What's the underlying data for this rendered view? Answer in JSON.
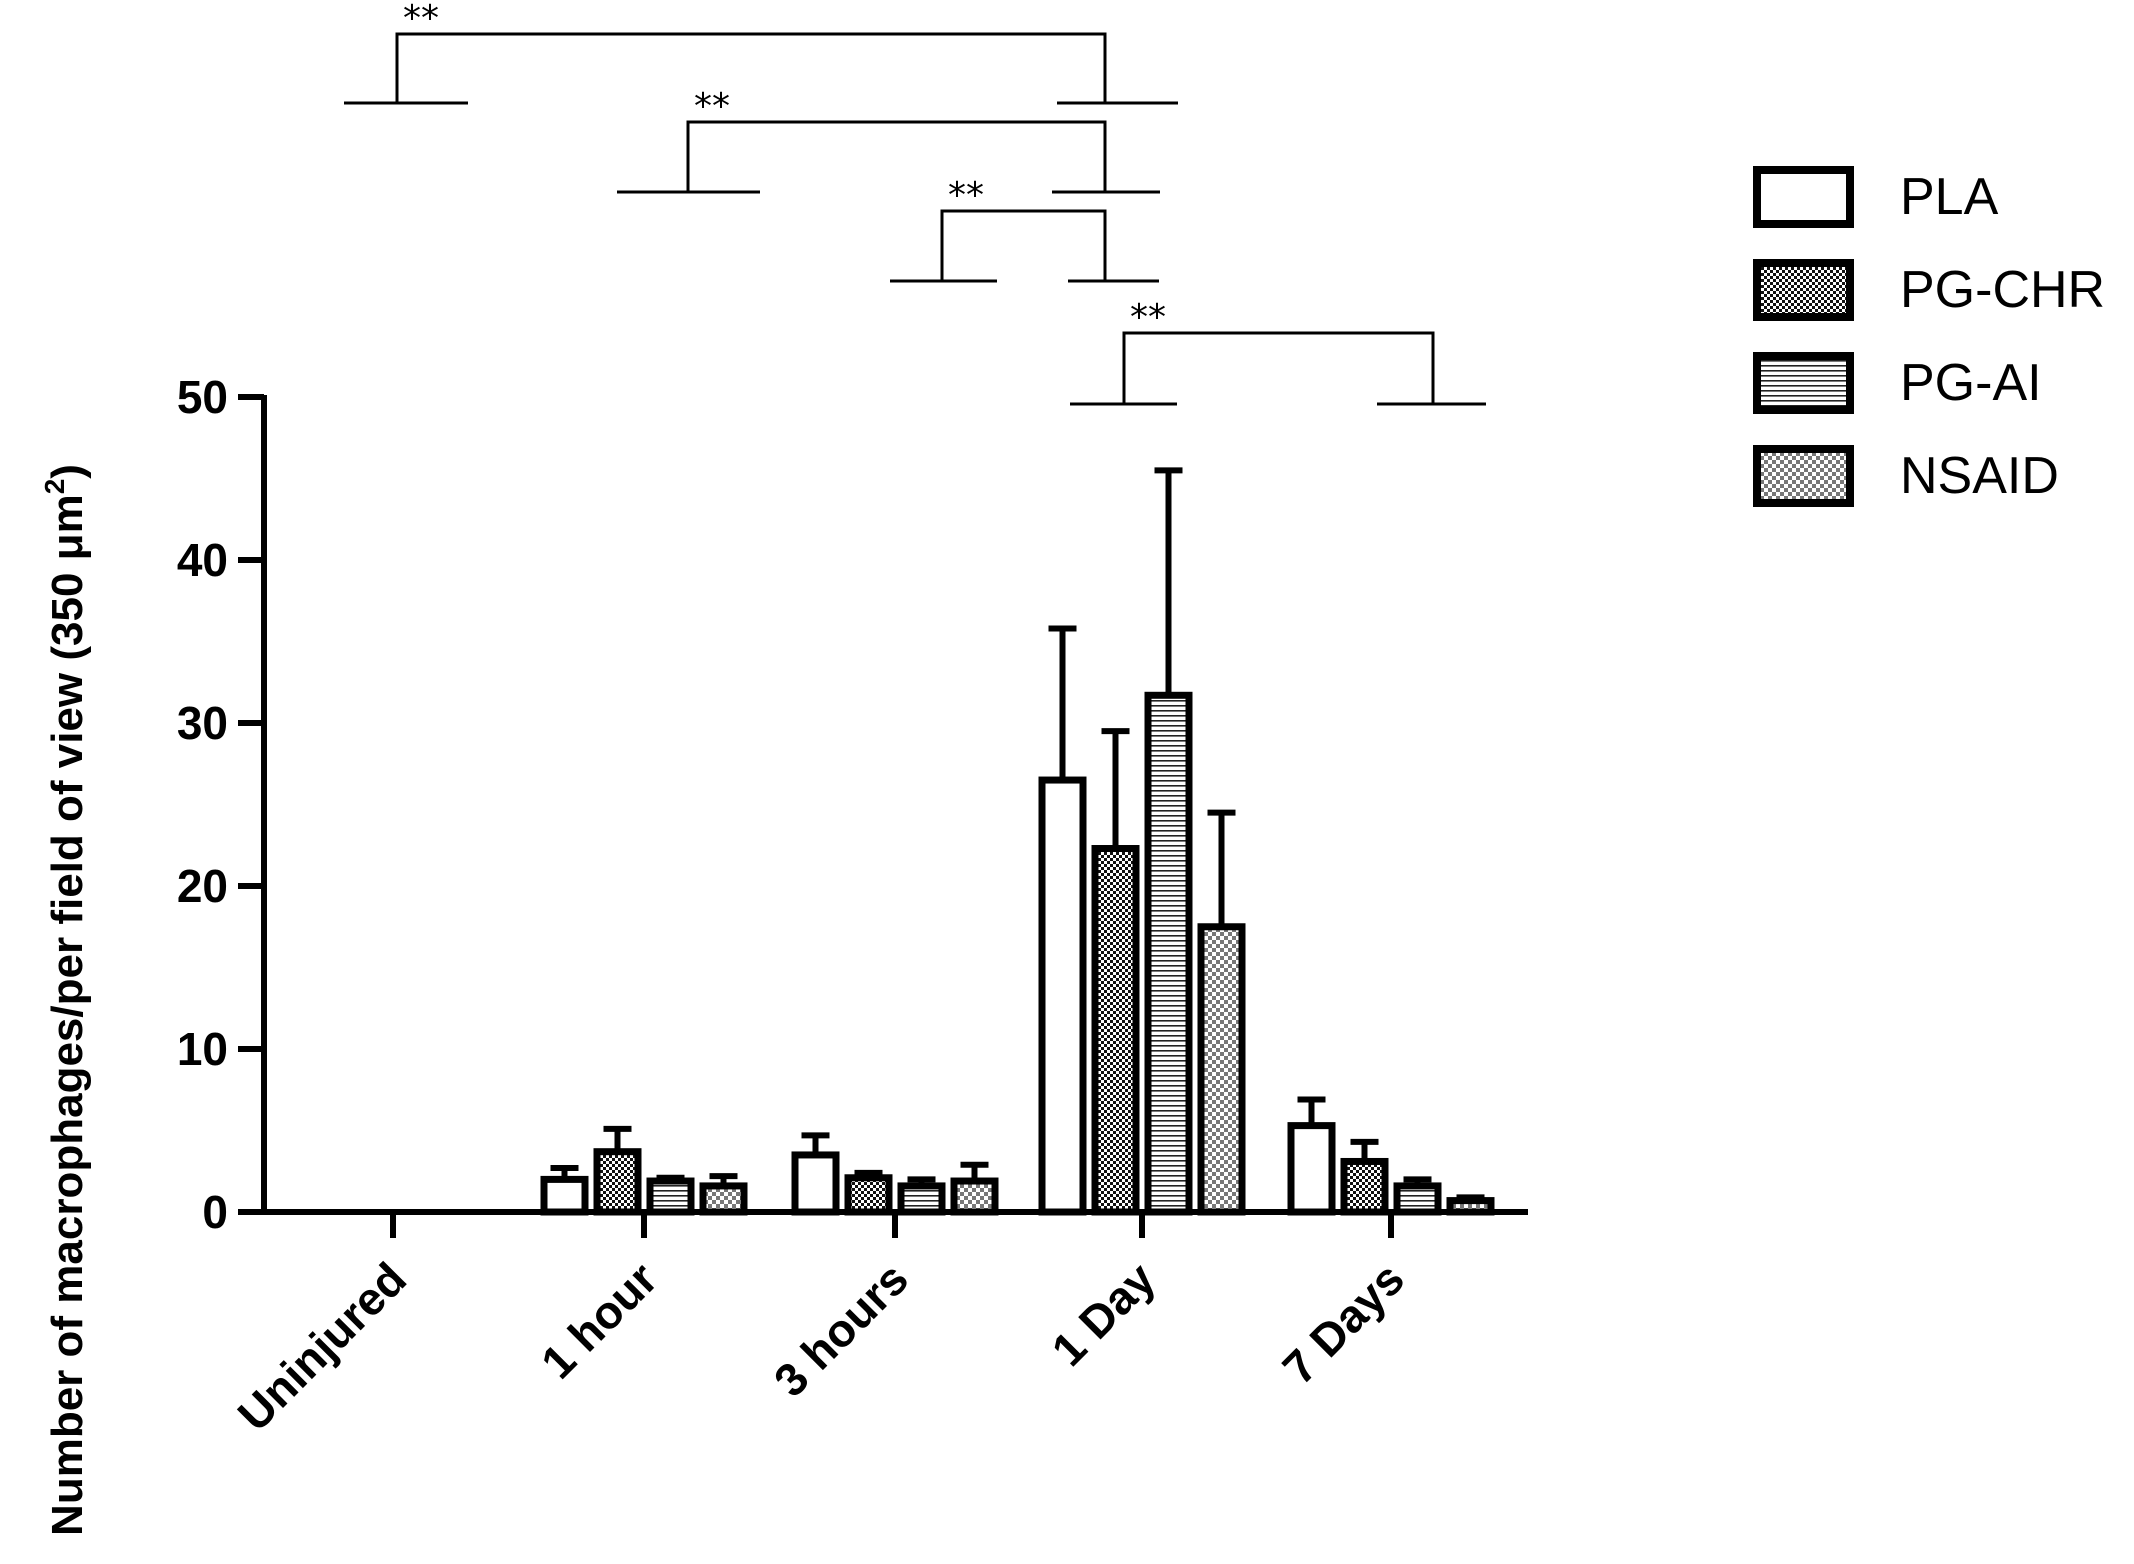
{
  "chart_data": {
    "type": "bar",
    "categories": [
      "Uninjured",
      "1 hour",
      "3 hours",
      "1 Day",
      "7 Days"
    ],
    "series": [
      {
        "name": "PLA",
        "pattern": "open",
        "values": [
          0,
          2.0,
          3.5,
          26.5,
          5.3
        ],
        "errors": [
          0,
          0.7,
          1.2,
          9.3,
          1.6
        ]
      },
      {
        "name": "PG-CHR",
        "pattern": "dense-check",
        "values": [
          0,
          3.7,
          2.1,
          22.3,
          3.1
        ],
        "errors": [
          0,
          1.4,
          0.3,
          7.2,
          1.2
        ]
      },
      {
        "name": "PG-AI",
        "pattern": "horizontal-stripes",
        "values": [
          0,
          1.9,
          1.6,
          31.7,
          1.6
        ],
        "errors": [
          0,
          0.2,
          0.4,
          13.8,
          0.4
        ]
      },
      {
        "name": "NSAID",
        "pattern": "light-check",
        "values": [
          0,
          1.6,
          1.9,
          17.5,
          0.7
        ],
        "errors": [
          0,
          0.6,
          1.0,
          7.0,
          0.2
        ]
      }
    ],
    "ylabel": "Number of macrophages/per field of view (350 μm",
    "ylabel_sup": "2",
    "ylabel_close": ")",
    "ylim": [
      0,
      50
    ],
    "yticks": [
      "0",
      "10",
      "20",
      "30",
      "40",
      "50"
    ],
    "legend_position": "top-right",
    "significance": [
      {
        "from": "Uninjured",
        "to": "1 Day",
        "label": "**"
      },
      {
        "from": "1 hour",
        "to": "1 Day",
        "label": "**"
      },
      {
        "from": "3 hours",
        "to": "1 Day",
        "label": "**"
      },
      {
        "from": "1 Day",
        "to": "7 Days",
        "label": "**"
      }
    ]
  }
}
